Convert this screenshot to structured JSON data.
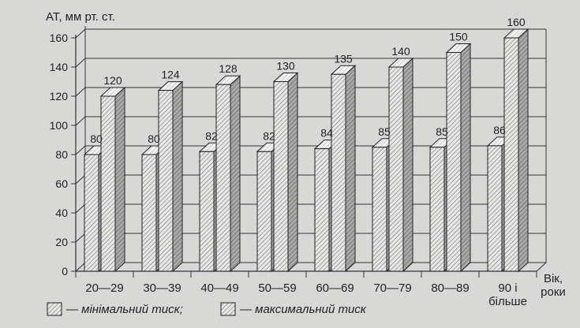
{
  "chart_data": {
    "type": "bar",
    "ylabel": "АТ, мм рт. ст.",
    "xlabel": [
      "Вік,",
      "роки"
    ],
    "ylim": [
      0,
      160
    ],
    "yticks": [
      0,
      20,
      40,
      60,
      80,
      100,
      120,
      140,
      160
    ],
    "grid": true,
    "categories": [
      [
        "20—29"
      ],
      [
        "30—39"
      ],
      [
        "40—49"
      ],
      [
        "50—59"
      ],
      [
        "60—69"
      ],
      [
        "70—79"
      ],
      [
        "80—89"
      ],
      [
        "90 і",
        "більше"
      ]
    ],
    "series": [
      {
        "name": "— мінімальний тиск;",
        "values": [
          80,
          80,
          82,
          82,
          84,
          85,
          85,
          86
        ]
      },
      {
        "name": "— максимальний тиск",
        "values": [
          120,
          124,
          128,
          130,
          135,
          140,
          150,
          160
        ]
      }
    ],
    "legend_position": "bottom-left",
    "colors": {
      "background": "#d8d9d7",
      "bar_front": "#e4e4e2",
      "bar_side": "#a9a9a7",
      "bar_top": "#f2f2f0",
      "ink": "#222222"
    }
  }
}
